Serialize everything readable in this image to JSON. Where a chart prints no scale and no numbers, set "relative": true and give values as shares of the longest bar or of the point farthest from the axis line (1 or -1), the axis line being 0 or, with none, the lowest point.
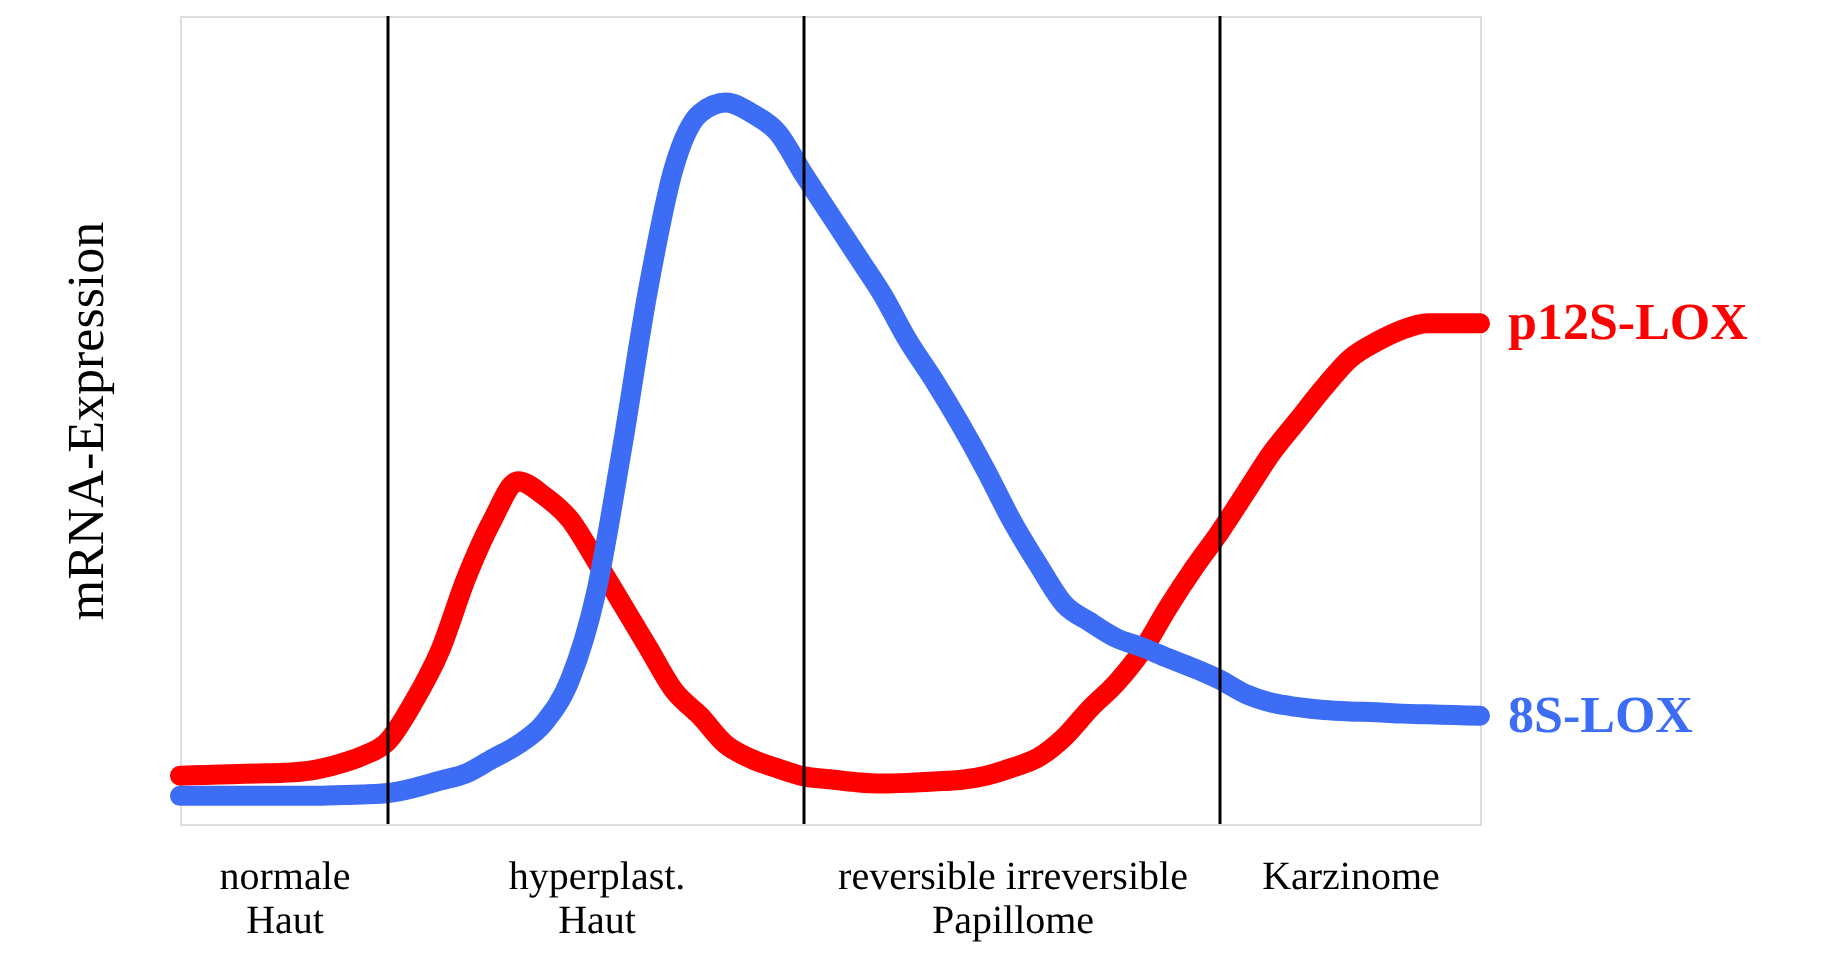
{
  "chart_data": {
    "type": "line",
    "ylabel": "mRNA-Expression",
    "relative": true,
    "grid": false,
    "legend": false,
    "marker": "none",
    "line_style": "solid",
    "categories": [
      null,
      null,
      null,
      null,
      "normale\nHaut",
      null,
      null,
      null,
      null,
      null,
      null,
      null,
      null,
      null,
      null,
      null,
      "hyperplast.\nHaut",
      null,
      null,
      null,
      null,
      null,
      null,
      null,
      null,
      null,
      null,
      null,
      null,
      null,
      null,
      null,
      "reversible irreversible\nPapillome",
      null,
      null,
      null,
      null,
      null,
      null,
      null,
      null,
      null,
      null,
      null,
      null,
      "Karzinome",
      null,
      null,
      null,
      null,
      null
    ],
    "series": [
      {
        "name": "p12S-LOX",
        "color": "#ff0000",
        "values": [
          0.067,
          0.068,
          0.069,
          0.07,
          0.071,
          0.074,
          0.082,
          0.094,
          0.115,
          0.17,
          0.24,
          0.34,
          0.42,
          0.475,
          0.455,
          0.422,
          0.365,
          0.305,
          0.245,
          0.185,
          0.15,
          0.11,
          0.09,
          0.077,
          0.066,
          0.062,
          0.058,
          0.056,
          0.057,
          0.059,
          0.061,
          0.067,
          0.078,
          0.092,
          0.12,
          0.16,
          0.195,
          0.24,
          0.3,
          0.355,
          0.405,
          0.46,
          0.515,
          0.56,
          0.605,
          0.645,
          0.668,
          0.685,
          0.694,
          0.694,
          0.694
        ]
      },
      {
        "name": "8S-LOX",
        "color": "#3d6cf5",
        "values": [
          0.039,
          0.039,
          0.039,
          0.039,
          0.039,
          0.039,
          0.04,
          0.041,
          0.043,
          0.05,
          0.06,
          0.07,
          0.09,
          0.11,
          0.14,
          0.2,
          0.32,
          0.52,
          0.74,
          0.91,
          0.985,
          1,
          0.985,
          0.958,
          0.9,
          0.845,
          0.79,
          0.735,
          0.67,
          0.615,
          0.555,
          0.49,
          0.42,
          0.36,
          0.305,
          0.28,
          0.258,
          0.245,
          0.23,
          0.216,
          0.2,
          0.18,
          0.168,
          0.162,
          0.158,
          0.156,
          0.155,
          0.153,
          0.152,
          0.151,
          0.15
        ]
      }
    ]
  }
}
